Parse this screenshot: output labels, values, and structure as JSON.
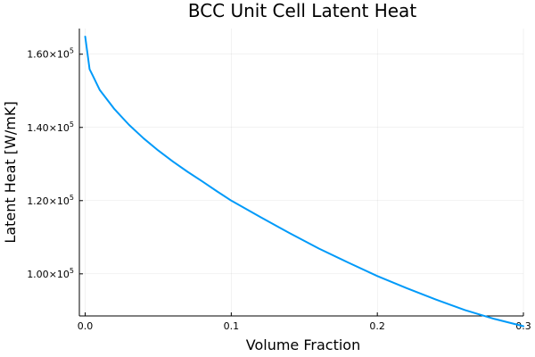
{
  "chart_data": {
    "type": "line",
    "title": "BCC Unit Cell Latent Heat",
    "xlabel": "Volume Fraction",
    "ylabel": "Latent Heat [W/mK]",
    "xlim": [
      -0.004,
      0.3
    ],
    "ylim": [
      88500,
      167000
    ],
    "grid": true,
    "legend": "none",
    "x_ticks": [
      {
        "value": 0.0,
        "label": "0.0"
      },
      {
        "value": 0.1,
        "label": "0.1"
      },
      {
        "value": 0.2,
        "label": "0.2"
      },
      {
        "value": 0.3,
        "label": "0.3"
      }
    ],
    "y_ticks": [
      {
        "value": 100000,
        "mantissa": "1.00",
        "times": "×10",
        "exp": "5"
      },
      {
        "value": 120000,
        "mantissa": "1.20",
        "times": "×10",
        "exp": "5"
      },
      {
        "value": 140000,
        "mantissa": "1.40",
        "times": "×10",
        "exp": "5"
      },
      {
        "value": 160000,
        "mantissa": "1.60",
        "times": "×10",
        "exp": "5"
      }
    ],
    "series": [
      {
        "color": "#009af9",
        "x": [
          0.0,
          0.003,
          0.005,
          0.01,
          0.02,
          0.03,
          0.04,
          0.05,
          0.06,
          0.07,
          0.08,
          0.09,
          0.1,
          0.12,
          0.14,
          0.16,
          0.18,
          0.2,
          0.22,
          0.24,
          0.26,
          0.28,
          0.3
        ],
        "y": [
          164800,
          155900,
          154300,
          150200,
          145000,
          140700,
          137000,
          133700,
          130700,
          127900,
          125300,
          122600,
          120000,
          115500,
          111100,
          106900,
          103100,
          99400,
          96100,
          93000,
          90100,
          87700,
          85700
        ]
      }
    ]
  }
}
